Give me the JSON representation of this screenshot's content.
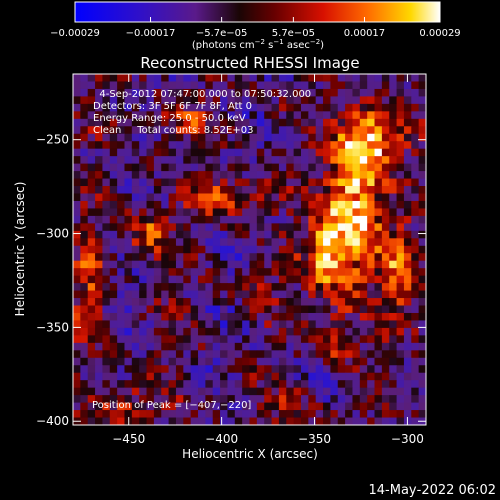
{
  "colorbar": {
    "tick_labels": [
      "−0.00029",
      "−0.00017",
      "−5.7e−05",
      "5.7e−05",
      "0.00017",
      "0.00029"
    ],
    "tick_values": [
      -0.00029,
      -0.00017,
      -5.7e-05,
      5.7e-05,
      0.00017,
      0.00029
    ],
    "range": [
      -0.00029,
      0.00029
    ],
    "units_prefix": "(photons cm",
    "units_exp1": "−2",
    "units_mid1": " s",
    "units_exp2": "−1",
    "units_mid2": " asec",
    "units_exp3": "−2",
    "units_suffix": ")"
  },
  "footer": {
    "timestamp": "14‑May‑2022 06:02"
  },
  "colors": {
    "background": "#000000",
    "text": "#ffffff"
  },
  "chart_data": {
    "type": "heatmap",
    "title": "Reconstructed RHESSI Image",
    "xlabel": "Heliocentric X (arcsec)",
    "ylabel": "Heliocentric Y (arcsec)",
    "xlim": [
      -480,
      -290
    ],
    "ylim": [
      -402,
      -215
    ],
    "x_ticks": [
      -450,
      -400,
      -350,
      -300
    ],
    "y_ticks": [
      -400,
      -350,
      -300,
      -250
    ],
    "colormap": "blue-purple-black-red-orange-yellow-white",
    "value_range": [
      -0.00029,
      0.00029
    ],
    "annotations": [
      "  4‑Sep‑2012 07:47:00.000 to 07:50:32.000",
      "Detectors: 3F 5F 6F 7F 8F, Att 0",
      "Energy Range: 25.0 ‑ 50.0 keV",
      "Clean     Total counts: 8.52E+03"
    ],
    "peak_annotation": "Position of Peak = [−407,−220]",
    "peak_position": [
      -407,
      -220
    ],
    "grid": {
      "nx": 48,
      "ny": 47,
      "seed": 7
    }
  }
}
